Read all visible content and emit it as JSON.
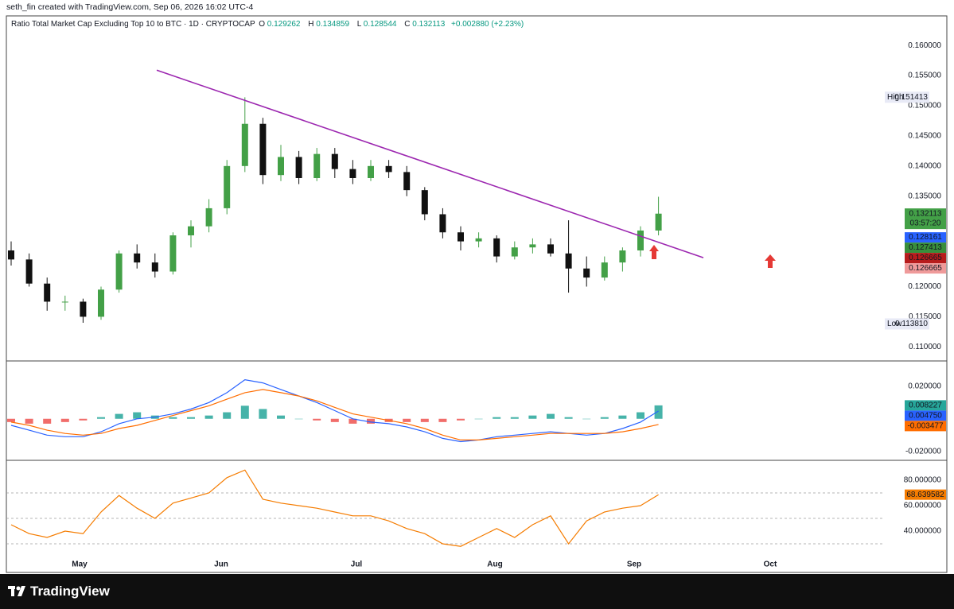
{
  "header": {
    "credit": "seth_fin created with TradingView.com, Sep 06, 2026 16:02 UTC-4"
  },
  "footer": {
    "brand": "TradingView"
  },
  "chart_data": [
    {
      "type": "candlestick",
      "title": "Ratio Total Market Cap Excluding Top 10 to BTC · 1D · CRYPTOCAP",
      "ohlc": [
        {
          "key": "O",
          "value": 0.129262
        },
        {
          "key": "H",
          "value": 0.134859
        },
        {
          "key": "L",
          "value": 0.128544
        },
        {
          "key": "C",
          "value": 0.132113
        }
      ],
      "change": "+0.002880 (+2.23%)",
      "x_labels": [
        "May",
        "Jun",
        "Jul",
        "Aug",
        "Sep",
        "Oct"
      ],
      "open": [
        0.126,
        0.1245,
        0.1205,
        0.1175,
        0.1175,
        0.115,
        0.1195,
        0.1255,
        0.124,
        0.1225,
        0.1285,
        0.13,
        0.133,
        0.14,
        0.147,
        0.1385,
        0.1415,
        0.138,
        0.142,
        0.1395,
        0.138,
        0.14,
        0.139,
        0.136,
        0.132,
        0.129,
        0.1275,
        0.128,
        0.125,
        0.1265,
        0.127,
        0.1255,
        0.123,
        0.1215,
        0.124,
        0.126,
        0.1293
      ],
      "high": [
        0.1275,
        0.1255,
        0.1215,
        0.1185,
        0.118,
        0.12,
        0.126,
        0.127,
        0.1255,
        0.129,
        0.131,
        0.1345,
        0.141,
        0.1514,
        0.148,
        0.1435,
        0.1425,
        0.143,
        0.143,
        0.141,
        0.141,
        0.141,
        0.14,
        0.1365,
        0.133,
        0.13,
        0.129,
        0.1285,
        0.1275,
        0.128,
        0.128,
        0.131,
        0.125,
        0.125,
        0.1265,
        0.13,
        0.1349
      ],
      "low": [
        0.1235,
        0.12,
        0.116,
        0.116,
        0.114,
        0.1145,
        0.119,
        0.123,
        0.1215,
        0.122,
        0.1265,
        0.129,
        0.132,
        0.139,
        0.137,
        0.1375,
        0.137,
        0.1375,
        0.138,
        0.137,
        0.1375,
        0.138,
        0.135,
        0.131,
        0.128,
        0.126,
        0.1265,
        0.124,
        0.1245,
        0.1255,
        0.125,
        0.119,
        0.12,
        0.121,
        0.1225,
        0.125,
        0.1285
      ],
      "close": [
        0.1245,
        0.1205,
        0.1175,
        0.1175,
        0.115,
        0.1195,
        0.1255,
        0.124,
        0.1225,
        0.1285,
        0.13,
        0.133,
        0.14,
        0.147,
        0.1385,
        0.1415,
        0.138,
        0.142,
        0.1395,
        0.138,
        0.14,
        0.139,
        0.136,
        0.132,
        0.129,
        0.1275,
        0.128,
        0.125,
        0.1265,
        0.127,
        0.1255,
        0.123,
        0.1215,
        0.124,
        0.126,
        0.1293,
        0.1321
      ],
      "up_color": "#43a047",
      "down_color": "#111111",
      "trendline": {
        "color": "#9c27b0",
        "values": [
          0.1559,
          0.1248
        ]
      },
      "ylim": [
        0.1078,
        0.1649
      ],
      "yticks": [
        {
          "value": 0.11,
          "label": "0.110000"
        },
        {
          "value": 0.115,
          "label": "0.115000"
        },
        {
          "value": 0.12,
          "label": "0.120000"
        },
        {
          "value": 0.125,
          "label": "0.125000"
        },
        {
          "value": 0.13,
          "label": "0.130000"
        },
        {
          "value": 0.135,
          "label": "0.135000"
        },
        {
          "value": 0.14,
          "label": "0.140000"
        },
        {
          "value": 0.145,
          "label": "0.145000"
        },
        {
          "value": 0.15,
          "label": "0.150000"
        },
        {
          "value": 0.155,
          "label": "0.155000"
        },
        {
          "value": 0.16,
          "label": "0.160000"
        }
      ],
      "high_label": {
        "text": "High",
        "value": 0.151413
      },
      "low_label": {
        "text": "Low",
        "value": {
          "value": 0.11381,
          "label": "0.113810"
        }
      },
      "price_labels": [
        {
          "value": 0.132113,
          "color": "#43a047",
          "sub": "03:57:20"
        },
        {
          "value": 0.128161,
          "color": "#2962ff"
        },
        {
          "value": 0.127413,
          "color": "#388e3c"
        },
        {
          "value": 0.126665,
          "color": "#b71c1c"
        },
        {
          "value": 0.126665,
          "color": "#ef9a9a"
        }
      ]
    },
    {
      "type": "macd",
      "histogram": {
        "up_color": "#26a69a",
        "down_color": "#ef5350",
        "values": [
          -0.002,
          -0.003,
          -0.003,
          -0.002,
          -0.001,
          0.001,
          0.003,
          0.004,
          0.002,
          0.001,
          0.001,
          0.002,
          0.004,
          0.008,
          0.006,
          0.002,
          0.0,
          -0.001,
          -0.002,
          -0.003,
          -0.003,
          -0.002,
          -0.002,
          -0.002,
          -0.002,
          -0.001,
          0.0,
          0.001,
          0.001,
          0.002,
          0.003,
          0.001,
          0.0,
          0.001,
          0.002,
          0.004,
          0.008227
        ]
      },
      "series": [
        {
          "color": "#2962ff",
          "values": [
            -0.004,
            -0.007,
            -0.01,
            -0.011,
            -0.011,
            -0.008,
            -0.003,
            0.0,
            0.001,
            0.003,
            0.006,
            0.01,
            0.016,
            0.024,
            0.022,
            0.018,
            0.014,
            0.01,
            0.005,
            0.0,
            -0.002,
            -0.003,
            -0.005,
            -0.008,
            -0.012,
            -0.014,
            -0.013,
            -0.011,
            -0.01,
            -0.009,
            -0.008,
            -0.009,
            -0.01,
            -0.009,
            -0.006,
            -0.002,
            0.00475
          ]
        },
        {
          "color": "#ff6d00",
          "values": [
            -0.002,
            -0.004,
            -0.007,
            -0.009,
            -0.01,
            -0.009,
            -0.006,
            -0.004,
            -0.001,
            0.002,
            0.005,
            0.008,
            0.012,
            0.016,
            0.018,
            0.016,
            0.014,
            0.011,
            0.007,
            0.003,
            0.001,
            -0.001,
            -0.003,
            -0.006,
            -0.01,
            -0.013,
            -0.013,
            -0.012,
            -0.011,
            -0.01,
            -0.009,
            -0.009,
            -0.009,
            -0.009,
            -0.008,
            -0.006,
            -0.003477
          ]
        }
      ],
      "ylim": [
        -0.025,
        0.035
      ],
      "yticks": [
        {
          "value": 0.02,
          "label": "0.020000"
        },
        {
          "value": -0.02,
          "label": "-0.020000"
        }
      ],
      "price_labels": [
        {
          "value": 0.008227,
          "color": "#26a69a"
        },
        {
          "value": {
            "value": 0.00475,
            "label": "0.004750"
          },
          "color": "#2962ff"
        },
        {
          "value": -0.003477,
          "color": "#ff6d00"
        }
      ]
    },
    {
      "type": "line",
      "series": [
        {
          "color": "#f57c00",
          "values": [
            45,
            38,
            35,
            40,
            38,
            55,
            68,
            58,
            50,
            62,
            66,
            70,
            82,
            88,
            65,
            62,
            60,
            58,
            55,
            52,
            52,
            48,
            42,
            38,
            30,
            28,
            35,
            42,
            35,
            45,
            52,
            30,
            48,
            55,
            58,
            60,
            68.639582
          ]
        }
      ],
      "levels": [
        70,
        50,
        30
      ],
      "ylim": [
        20,
        95
      ],
      "yticks": [
        {
          "value": 80,
          "label": "80.000000"
        },
        {
          "value": 60,
          "label": "60.000000"
        },
        {
          "value": 40,
          "label": "40.000000"
        }
      ],
      "price_labels": [
        {
          "value": 68.639582,
          "color": "#f57c00"
        }
      ]
    }
  ]
}
